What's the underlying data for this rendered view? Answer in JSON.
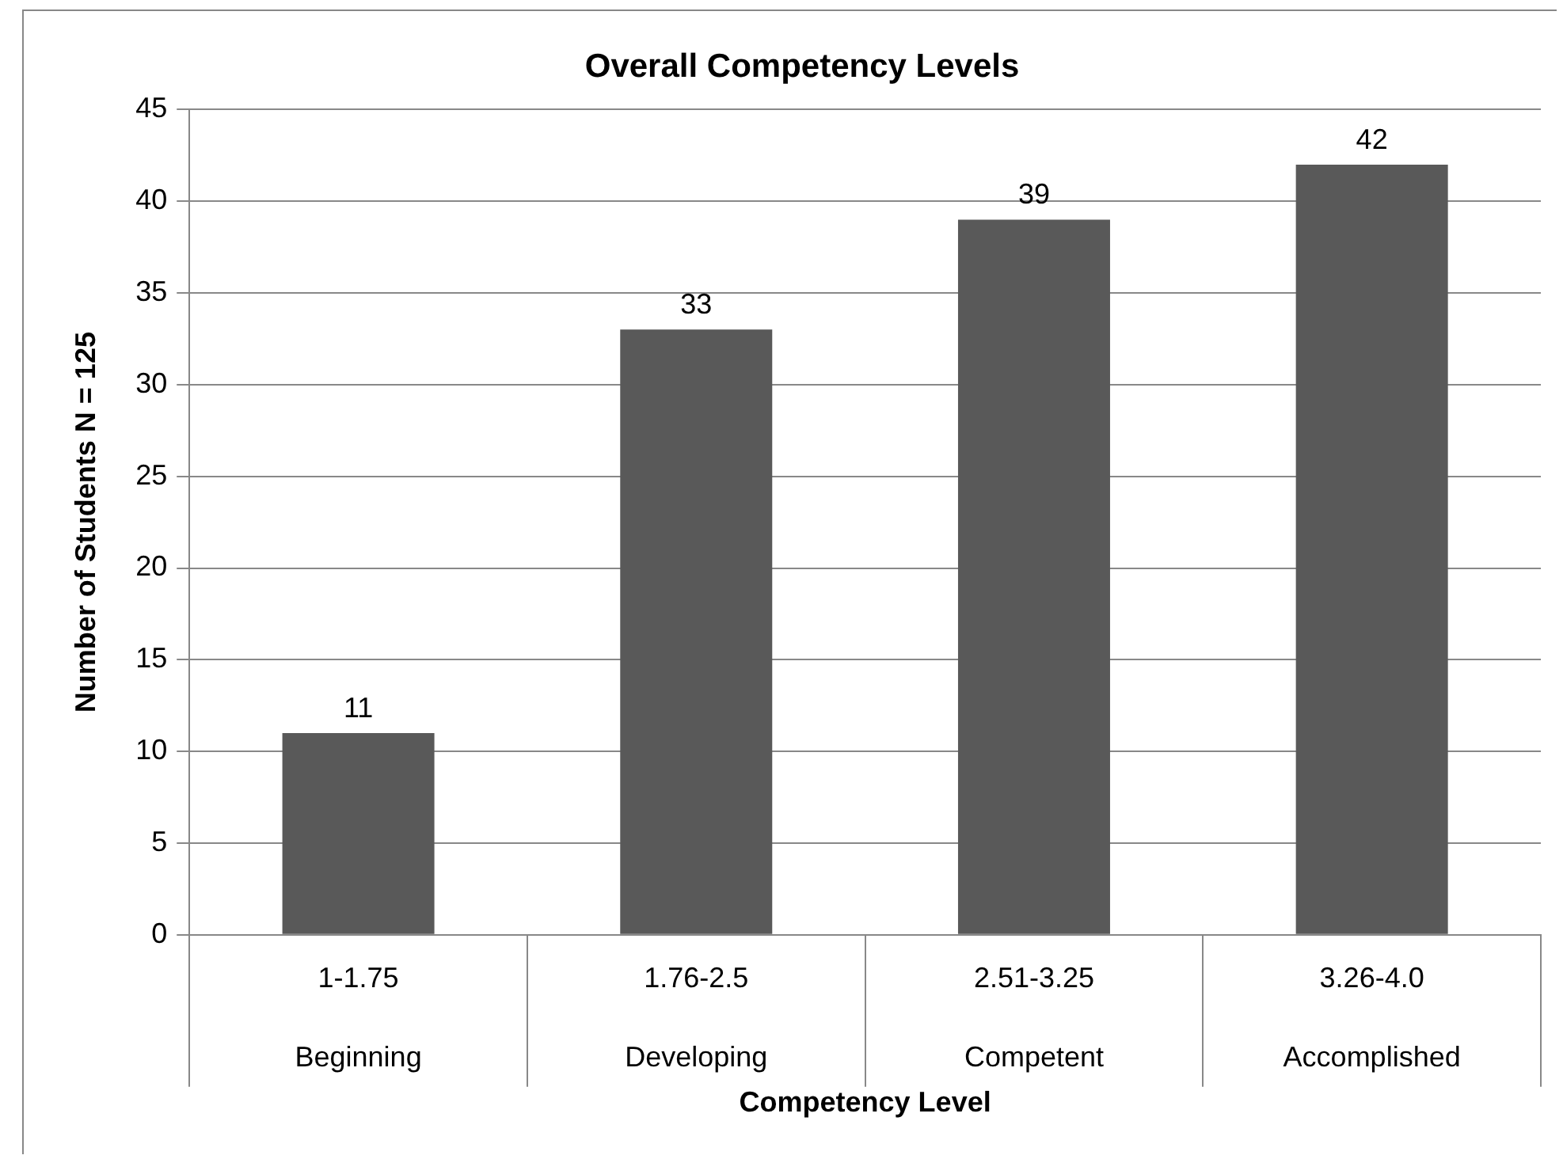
{
  "chart_data": {
    "type": "bar",
    "title": "Overall Competency Levels",
    "xlabel": "Competency Level",
    "ylabel": "Number of Students N = 125",
    "categories": [
      "1-1.75\nBeginning",
      "1.76-2.5\nDeveloping",
      "2.51-3.25\nCompetent",
      "3.26-4.0\nAccomplished"
    ],
    "values": [
      11,
      33,
      39,
      42
    ],
    "color": "#595959",
    "ylim": [
      0,
      45
    ],
    "yticks": [
      0,
      5,
      10,
      15,
      20,
      25,
      30,
      35,
      40,
      45
    ],
    "grid": "y",
    "data_labels": true,
    "legend": false
  }
}
